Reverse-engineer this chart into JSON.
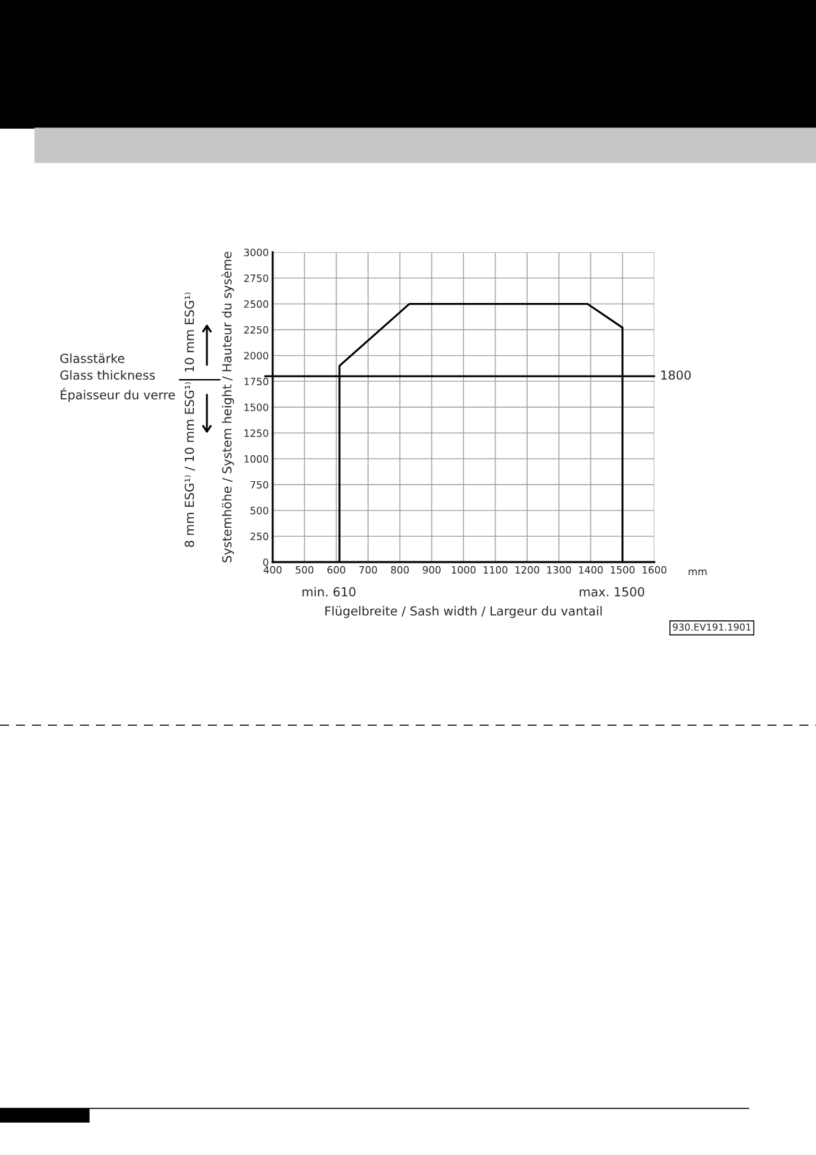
{
  "chart_data": {
    "type": "line",
    "ylabel": "Systemhöhe / System height / Hauteur du sysème",
    "xlabel": "Flügelbreite / Sash width / Largeur du vantail",
    "x": [
      610,
      610,
      830,
      1390,
      1500,
      1500
    ],
    "series": [
      {
        "color": "#000000",
        "values": [
          0,
          1900,
          2500,
          2500,
          2270,
          0
        ]
      }
    ],
    "xlim": [
      400,
      1600
    ],
    "xticks": [
      400,
      500,
      600,
      700,
      800,
      900,
      1000,
      1100,
      1200,
      1300,
      1400,
      1500,
      1600
    ],
    "ylim": [
      0,
      3000
    ],
    "yticks": [
      0,
      250,
      500,
      750,
      1000,
      1250,
      1500,
      1750,
      2000,
      2250,
      2500,
      2750,
      3000
    ],
    "ref_lines": [
      {
        "axis": "y",
        "value": 1800,
        "label": "1800",
        "color": "#000000"
      }
    ],
    "grid": true,
    "marker": "none",
    "line_style": "solid",
    "annotations": [
      "mm",
      "min. 610",
      "max. 1500",
      "Glasstärke\nGlass thickness\nÉpaisseur du verre",
      "10 mm ESG¹⁾",
      "8 mm ESG¹⁾ / 10 mm ESG¹⁾",
      "930.EV191.1901"
    ]
  }
}
